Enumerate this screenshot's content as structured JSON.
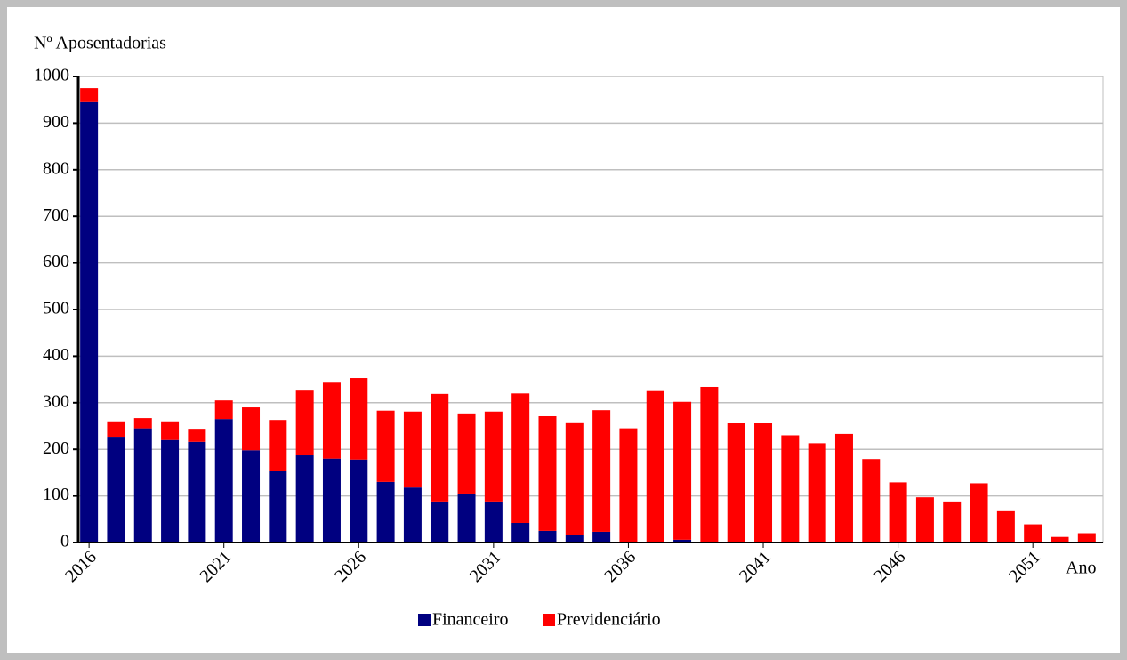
{
  "chart_data": {
    "type": "stacked-bar",
    "y_axis_label": "Nº Aposentadorias",
    "x_axis_label": "Ano",
    "categories": [
      "2016",
      null,
      null,
      null,
      null,
      "2021",
      null,
      null,
      null,
      null,
      "2026",
      null,
      null,
      null,
      null,
      "2031",
      null,
      null,
      null,
      null,
      "2036",
      null,
      null,
      null,
      null,
      "2041",
      null,
      null,
      null,
      null,
      "2046",
      null,
      null,
      null,
      null,
      "2051",
      null,
      null
    ],
    "series": [
      {
        "name": "Financeiro",
        "color": "#000080",
        "values": [
          945,
          227,
          245,
          220,
          216,
          265,
          198,
          153,
          187,
          180,
          178,
          130,
          118,
          88,
          105,
          88,
          42,
          25,
          17,
          23,
          0,
          0,
          6,
          0,
          0,
          0,
          0,
          0,
          0,
          0,
          0,
          0,
          0,
          0,
          0,
          0,
          0,
          0
        ]
      },
      {
        "name": "Previdenciário",
        "color": "#ff0000",
        "values": [
          30,
          33,
          22,
          40,
          28,
          40,
          92,
          110,
          139,
          163,
          175,
          153,
          163,
          231,
          172,
          193,
          278,
          246,
          241,
          261,
          245,
          325,
          296,
          334,
          257,
          257,
          230,
          213,
          233,
          179,
          129,
          97,
          88,
          127,
          69,
          39,
          12,
          20
        ]
      }
    ],
    "ylim": [
      0,
      1000
    ],
    "yticks": [
      0,
      100,
      200,
      300,
      400,
      500,
      600,
      700,
      800,
      900,
      1000
    ],
    "grid": true
  }
}
